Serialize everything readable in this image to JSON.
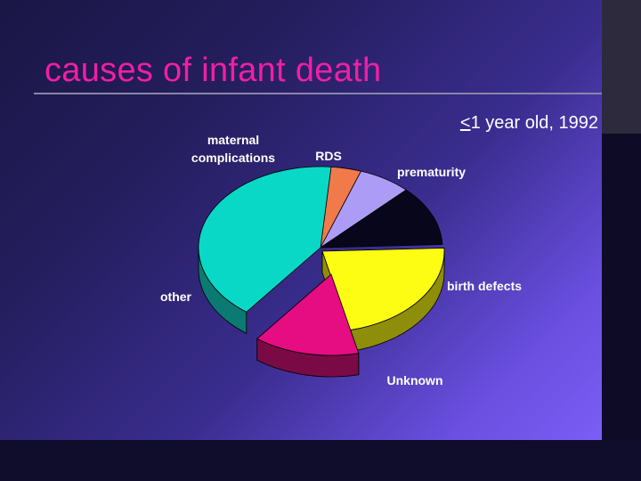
{
  "title": "causes of infant death",
  "subtitle_prefix": "<",
  "subtitle_rest": "1 year old, 1992",
  "chart_data": {
    "type": "pie",
    "title": "causes of infant death",
    "subtitle": "<1 year old, 1992",
    "slices": [
      {
        "label": "maternal complications",
        "label_lines": [
          "maternal",
          "complications"
        ],
        "value": 4,
        "color": "#f07a4a",
        "side_color": "#a34a26",
        "exploded": false
      },
      {
        "label": "RDS",
        "label_lines": [
          "RDS"
        ],
        "value": 7,
        "color": "#ac9cf6",
        "side_color": "#6b5eb0",
        "exploded": false
      },
      {
        "label": "prematurity",
        "label_lines": [
          "prematurity"
        ],
        "value": 12,
        "color": "#08061a",
        "side_color": "#000000",
        "exploded": false
      },
      {
        "label": "birth defects",
        "label_lines": [
          "birth defects"
        ],
        "value": 22,
        "color": "#fdfd14",
        "side_color": "#8e8e0a",
        "exploded": true
      },
      {
        "label": "Unknown",
        "label_lines": [
          "Unknown"
        ],
        "value": 14,
        "color": "#e60c82",
        "side_color": "#7a0a45",
        "exploded": true
      },
      {
        "label": "other",
        "label_lines": [
          "other"
        ],
        "value": 41,
        "color": "#0ad8c6",
        "side_color": "#0b7a72",
        "exploded": false
      }
    ]
  }
}
